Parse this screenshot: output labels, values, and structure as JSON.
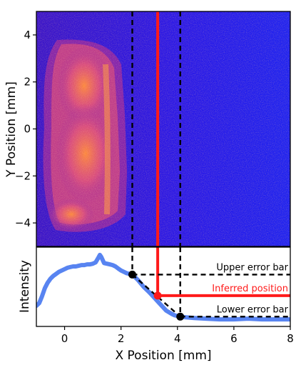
{
  "chart_data": [
    {
      "type": "heatmap",
      "panel": "top",
      "ylabel": "Y Position [mm]",
      "xlim": [
        -1,
        8
      ],
      "ylim": [
        -5,
        5
      ],
      "yticks": [
        -4,
        -2,
        0,
        2,
        4
      ],
      "ytick_labels": [
        "−4",
        "−2",
        "0",
        "2",
        "4"
      ],
      "colormap": "plasma (blue → purple → orange)",
      "description_of_signal": "crescent-shaped bright region spanning x≈-0.8 to 2.2 mm, y≈-4.7 to 4.2 mm",
      "vertical_lines": [
        {
          "name": "lower_x",
          "x": 2.4,
          "style": "dashed",
          "color": "#000000"
        },
        {
          "name": "inferred",
          "x": 3.3,
          "style": "solid",
          "color": "#ff1a1a"
        },
        {
          "name": "upper_x",
          "x": 4.1,
          "style": "dashed",
          "color": "#000000"
        }
      ]
    },
    {
      "type": "line",
      "panel": "bottom",
      "xlabel": "X Position [mm]",
      "ylabel": "Intensity",
      "xlim": [
        -1,
        8
      ],
      "xticks": [
        0,
        2,
        4,
        6,
        8
      ],
      "ylim": [
        0,
        1
      ],
      "series": [
        {
          "color": "#4f7df0",
          "x": [
            -1.0,
            -0.9,
            -0.8,
            -0.7,
            -0.6,
            -0.5,
            -0.4,
            -0.3,
            -0.2,
            -0.1,
            0.0,
            0.1,
            0.2,
            0.3,
            0.4,
            0.5,
            0.6,
            0.7,
            0.8,
            0.9,
            1.0,
            1.1,
            1.2,
            1.25,
            1.3,
            1.4,
            1.5,
            1.6,
            1.7,
            1.8,
            1.9,
            2.0,
            2.1,
            2.2,
            2.3,
            2.4,
            2.6,
            2.8,
            3.0,
            3.2,
            3.4,
            3.6,
            3.8,
            3.9,
            4.0,
            4.1,
            4.3,
            4.6,
            5.0,
            5.5,
            6.0,
            6.5,
            7.0,
            7.5,
            8.0
          ],
          "y": [
            0.22,
            0.26,
            0.36,
            0.48,
            0.56,
            0.62,
            0.66,
            0.69,
            0.72,
            0.74,
            0.76,
            0.78,
            0.79,
            0.8,
            0.8,
            0.81,
            0.82,
            0.82,
            0.83,
            0.83,
            0.84,
            0.86,
            0.93,
            0.97,
            0.94,
            0.85,
            0.84,
            0.83,
            0.82,
            0.8,
            0.77,
            0.74,
            0.72,
            0.7,
            0.69,
            0.68,
            0.6,
            0.5,
            0.42,
            0.33,
            0.24,
            0.15,
            0.1,
            0.08,
            0.07,
            0.06,
            0.05,
            0.04,
            0.03,
            0.02,
            0.02,
            0.03,
            0.02,
            0.02,
            0.02
          ]
        }
      ],
      "horizontal_levels": [
        {
          "name": "upper",
          "y": 0.68,
          "x_from": 2.4,
          "label": "Upper error bar",
          "color": "#000000",
          "style": "dashed"
        },
        {
          "name": "inferred",
          "y": 0.37,
          "x_from": 3.3,
          "label": "Inferred position",
          "color": "#ff1a1a",
          "style": "solid"
        },
        {
          "name": "lower",
          "y": 0.06,
          "x_from": 4.1,
          "label": "Lower error bar",
          "color": "#000000",
          "style": "dashed"
        }
      ],
      "markers": [
        {
          "x": 2.4,
          "y": 0.68,
          "color": "#000000"
        },
        {
          "x": 3.3,
          "y": 0.37,
          "color": "#ff1a1a"
        },
        {
          "x": 4.1,
          "y": 0.06,
          "color": "#000000"
        }
      ],
      "connector": {
        "from": [
          2.4,
          0.68
        ],
        "to": [
          4.1,
          0.06
        ],
        "style": "dashed",
        "color": "#000000"
      }
    }
  ]
}
